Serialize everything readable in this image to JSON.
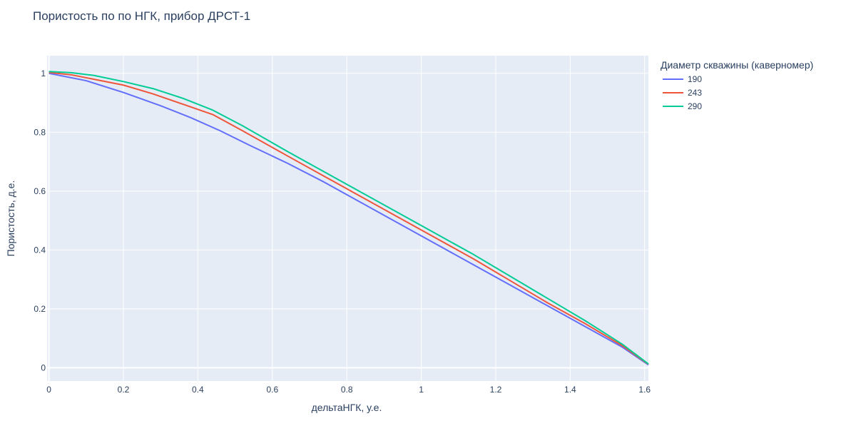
{
  "chart_data": {
    "type": "line",
    "title": "Пористость по по НГК, прибор ДРСТ-1",
    "xlabel": "дельтаНГК, у.е.",
    "ylabel": "Пористость, д.е.",
    "xlim": [
      -0.005,
      1.61
    ],
    "ylim": [
      -0.045,
      1.06
    ],
    "xticks": [
      0,
      0.2,
      0.4,
      0.6,
      0.8,
      1,
      1.2,
      1.4,
      1.6
    ],
    "xtick_labels": [
      "0",
      "0.2",
      "0.4",
      "0.6",
      "0.8",
      "1",
      "1.2",
      "1.4",
      "1.6"
    ],
    "yticks": [
      0,
      0.2,
      0.4,
      0.6,
      0.8,
      1
    ],
    "ytick_labels": [
      "0",
      "0.2",
      "0.4",
      "0.6",
      "0.8",
      "1"
    ],
    "grid": true,
    "legend_title": "Диаметр скважины (каверномер)",
    "legend_position": "right",
    "series": [
      {
        "name": "190",
        "color": "#636efa",
        "x": [
          0,
          0.1,
          0.2,
          0.3,
          0.38,
          0.46,
          0.54,
          0.64,
          0.74,
          0.84,
          0.94,
          1.04,
          1.14,
          1.24,
          1.34,
          1.44,
          1.54,
          1.61
        ],
        "y": [
          1.0,
          0.975,
          0.935,
          0.89,
          0.85,
          0.805,
          0.755,
          0.695,
          0.63,
          0.56,
          0.49,
          0.42,
          0.35,
          0.28,
          0.21,
          0.14,
          0.07,
          0.01
        ]
      },
      {
        "name": "243",
        "color": "#ef553b",
        "x": [
          0,
          0.06,
          0.12,
          0.2,
          0.28,
          0.36,
          0.44,
          0.52,
          0.64,
          0.74,
          0.84,
          0.94,
          1.04,
          1.14,
          1.24,
          1.34,
          1.44,
          1.54,
          1.61
        ],
        "y": [
          1.003,
          0.995,
          0.98,
          0.96,
          0.93,
          0.895,
          0.86,
          0.805,
          0.72,
          0.65,
          0.58,
          0.51,
          0.44,
          0.37,
          0.295,
          0.22,
          0.15,
          0.075,
          0.012
        ]
      },
      {
        "name": "290",
        "color": "#00cc96",
        "x": [
          0,
          0.06,
          0.12,
          0.2,
          0.28,
          0.36,
          0.44,
          0.52,
          0.64,
          0.74,
          0.84,
          0.94,
          1.04,
          1.14,
          1.24,
          1.34,
          1.44,
          1.54,
          1.61
        ],
        "y": [
          1.006,
          1.002,
          0.993,
          0.972,
          0.948,
          0.915,
          0.875,
          0.822,
          0.735,
          0.665,
          0.595,
          0.525,
          0.455,
          0.385,
          0.31,
          0.235,
          0.16,
          0.08,
          0.013
        ]
      }
    ]
  }
}
